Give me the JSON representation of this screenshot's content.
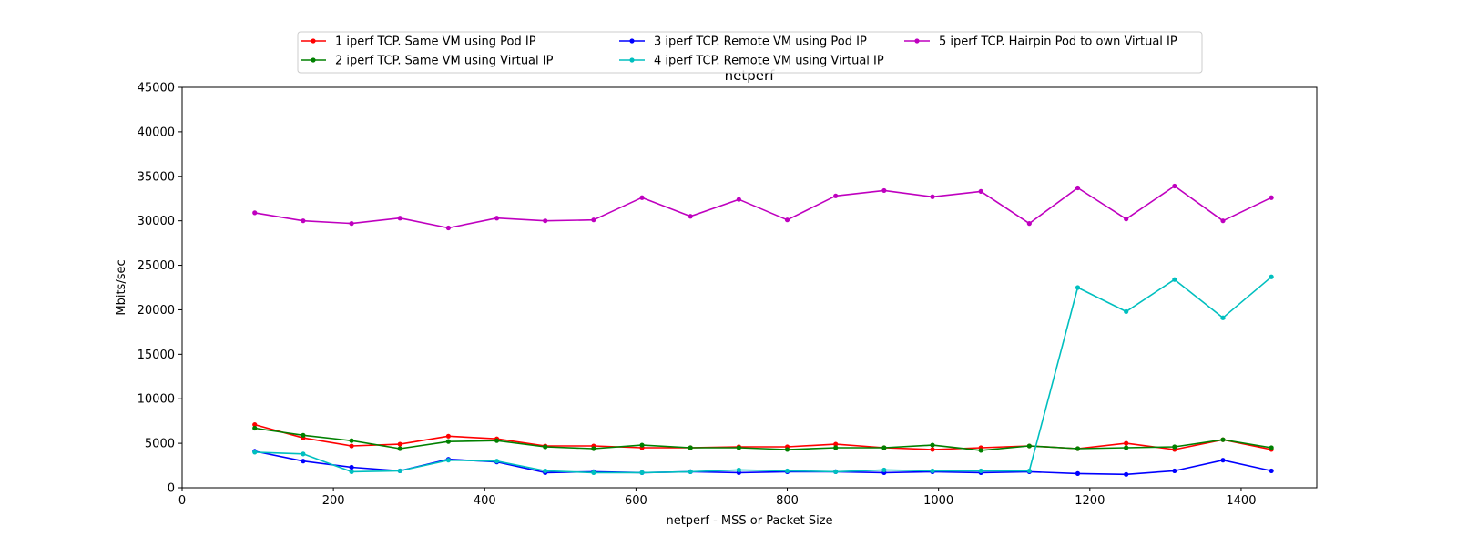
{
  "chart_data": {
    "type": "line",
    "title": "netperf",
    "xlabel": "netperf - MSS or Packet Size",
    "ylabel": "Mbits/sec",
    "xlim": [
      0,
      1500
    ],
    "ylim": [
      0,
      45000
    ],
    "xticks": [
      0,
      200,
      400,
      600,
      800,
      1000,
      1200,
      1400
    ],
    "yticks": [
      0,
      5000,
      10000,
      15000,
      20000,
      25000,
      30000,
      35000,
      40000,
      45000
    ],
    "grid": false,
    "legend_position": "top-center",
    "x": [
      96,
      160,
      224,
      288,
      352,
      416,
      480,
      544,
      608,
      672,
      736,
      800,
      864,
      928,
      992,
      1056,
      1120,
      1184,
      1248,
      1312,
      1376,
      1440
    ],
    "series": [
      {
        "name": "1 iperf TCP. Same VM using Pod IP",
        "color": "#ff0000",
        "values": [
          7100,
          5600,
          4700,
          4900,
          5800,
          5500,
          4700,
          4700,
          4500,
          4500,
          4600,
          4600,
          4900,
          4500,
          4300,
          4500,
          4700,
          4400,
          5000,
          4300,
          5400,
          4300
        ]
      },
      {
        "name": "2 iperf TCP. Same VM using Virtual IP",
        "color": "#008000",
        "values": [
          6700,
          5900,
          5300,
          4400,
          5200,
          5300,
          4600,
          4400,
          4800,
          4500,
          4500,
          4300,
          4500,
          4500,
          4800,
          4200,
          4700,
          4400,
          4500,
          4600,
          5400,
          4500
        ]
      },
      {
        "name": "3 iperf TCP. Remote VM using Pod IP",
        "color": "#0000ff",
        "values": [
          4100,
          3000,
          2300,
          1900,
          3200,
          2900,
          1700,
          1800,
          1700,
          1800,
          1700,
          1800,
          1800,
          1700,
          1800,
          1700,
          1800,
          1600,
          1500,
          1900,
          3100,
          1900
        ]
      },
      {
        "name": "4 iperf TCP. Remote VM using Virtual IP",
        "color": "#00bfbf",
        "values": [
          4000,
          3800,
          1800,
          1900,
          3100,
          3000,
          1900,
          1700,
          1700,
          1800,
          2000,
          1900,
          1800,
          2000,
          1900,
          1900,
          1900,
          22500,
          19800,
          23400,
          19100,
          23700
        ]
      },
      {
        "name": "5 iperf TCP. Hairpin Pod to own Virtual IP",
        "color": "#bf00bf",
        "values": [
          30900,
          30000,
          29700,
          30300,
          29200,
          30300,
          30000,
          30100,
          32600,
          30500,
          32400,
          30100,
          32800,
          33400,
          32700,
          33300,
          29700,
          33700,
          30200,
          33900,
          30000,
          32600
        ]
      }
    ]
  }
}
